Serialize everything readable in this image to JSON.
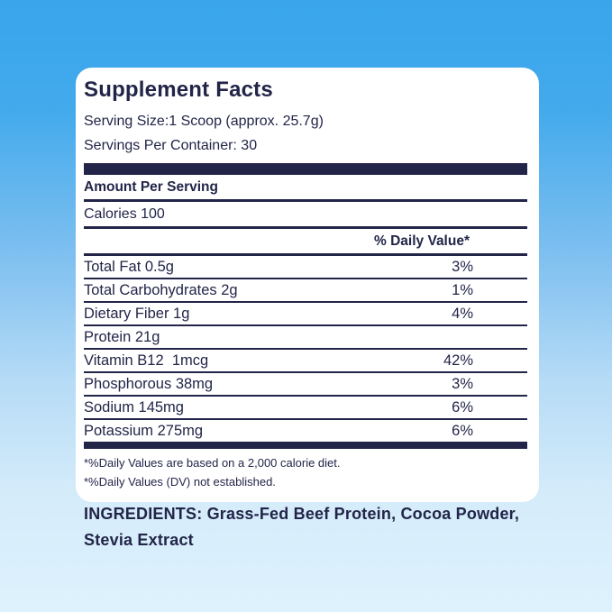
{
  "label": {
    "title": "Supplement Facts",
    "serving_size": "Serving Size:1 Scoop (approx. 25.7g)",
    "servings_per_container": "Servings Per Container: 30",
    "amount_per_serving": "Amount Per Serving",
    "calories": "Calories 100",
    "daily_value_header": "% Daily Value*",
    "rows": [
      {
        "name": "Total Fat 0.5g",
        "dv": "3%"
      },
      {
        "name": "Total Carbohydrates 2g",
        "dv": "1%"
      },
      {
        "name": "Dietary Fiber 1g",
        "dv": "4%"
      },
      {
        "name": "Protein 21g",
        "dv": ""
      },
      {
        "name": "Vitamin B12  1mcg",
        "dv": "42%"
      },
      {
        "name": "Phosphorous 38mg",
        "dv": "3%"
      },
      {
        "name": "Sodium 145mg",
        "dv": "6%"
      },
      {
        "name": "Potassium 275mg",
        "dv": "6%"
      }
    ],
    "footnotes": [
      "*%Daily Values are based on a 2,000 calorie diet.",
      "*%Daily Values (DV) not established."
    ]
  },
  "ingredients": {
    "text": "INGREDIENTS: Grass-Fed Beef Protein, Cocoa Powder, Stevia Extract"
  },
  "colors": {
    "navy_text": "#222548",
    "card_background": "#ffffff",
    "background_top": "#39a5eb",
    "background_bottom": "#def2fd"
  }
}
